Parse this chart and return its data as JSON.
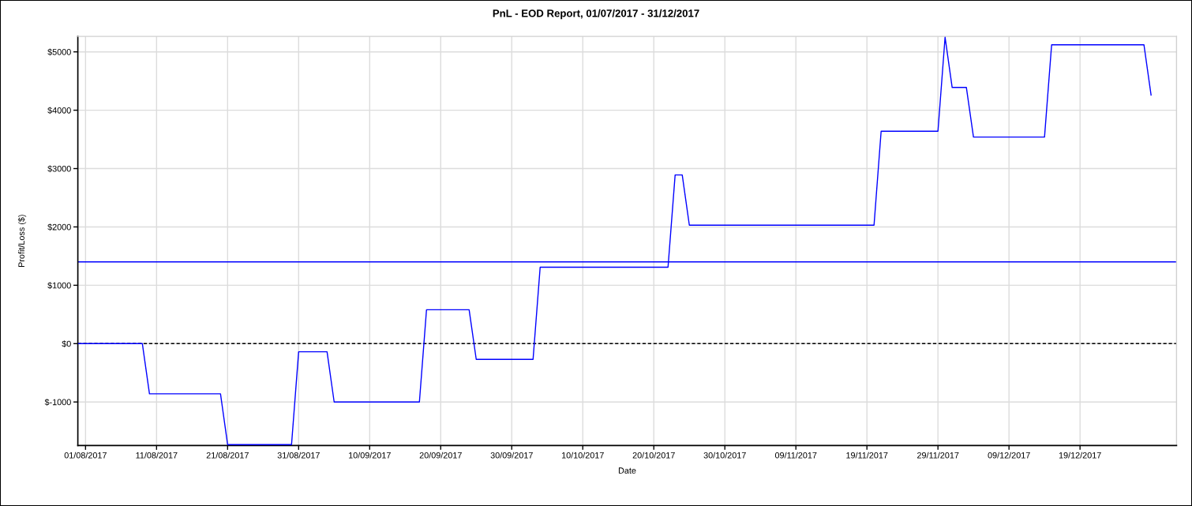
{
  "chart_data": {
    "type": "line",
    "title": "PnL - EOD Report, 01/07/2017 - 31/12/2017",
    "xlabel": "Date",
    "ylabel": "Profit/Loss ($)",
    "x": [
      "2017-07-31",
      "2017-08-09",
      "2017-08-10",
      "2017-08-20",
      "2017-08-21",
      "2017-08-30",
      "2017-08-31",
      "2017-09-04",
      "2017-09-05",
      "2017-09-17",
      "2017-09-18",
      "2017-09-24",
      "2017-09-25",
      "2017-10-03",
      "2017-10-04",
      "2017-10-22",
      "2017-10-23",
      "2017-10-24",
      "2017-10-25",
      "2017-11-20",
      "2017-11-21",
      "2017-11-29",
      "2017-11-30",
      "2017-12-01",
      "2017-12-03",
      "2017-12-04",
      "2017-12-14",
      "2017-12-15",
      "2017-12-28",
      "2017-12-29"
    ],
    "series": [
      {
        "color": "#0000ff",
        "values": [
          0,
          0,
          -860,
          -860,
          -1730,
          -1730,
          -140,
          -140,
          -1000,
          -1000,
          580,
          580,
          -270,
          -270,
          1310,
          1310,
          2890,
          2890,
          2030,
          2030,
          3640,
          3640,
          5250,
          4390,
          4390,
          3540,
          3540,
          5120,
          5120,
          4260
        ]
      }
    ],
    "xlim": [
      "2017-07-30T22:00",
      "2018-01-01T14:00"
    ],
    "ylim": [
      -1745,
      5265
    ],
    "xticks": [
      {
        "value": "2017-08-01",
        "label": "01/08/2017"
      },
      {
        "value": "2017-08-11",
        "label": "11/08/2017"
      },
      {
        "value": "2017-08-21",
        "label": "21/08/2017"
      },
      {
        "value": "2017-08-31",
        "label": "31/08/2017"
      },
      {
        "value": "2017-09-10",
        "label": "10/09/2017"
      },
      {
        "value": "2017-09-20",
        "label": "20/09/2017"
      },
      {
        "value": "2017-09-30",
        "label": "30/09/2017"
      },
      {
        "value": "2017-10-10",
        "label": "10/10/2017"
      },
      {
        "value": "2017-10-20",
        "label": "20/10/2017"
      },
      {
        "value": "2017-10-30",
        "label": "30/10/2017"
      },
      {
        "value": "2017-11-09",
        "label": "09/11/2017"
      },
      {
        "value": "2017-11-19",
        "label": "19/11/2017"
      },
      {
        "value": "2017-11-29",
        "label": "29/11/2017"
      },
      {
        "value": "2017-12-09",
        "label": "09/12/2017"
      },
      {
        "value": "2017-12-19",
        "label": "19/12/2017"
      }
    ],
    "yticks": [
      {
        "value": -1000,
        "label": "$-1000"
      },
      {
        "value": 0,
        "label": "$0"
      },
      {
        "value": 1000,
        "label": "$1000"
      },
      {
        "value": 2000,
        "label": "$2000"
      },
      {
        "value": 3000,
        "label": "$3000"
      },
      {
        "value": 4000,
        "label": "$4000"
      },
      {
        "value": 5000,
        "label": "$5000"
      }
    ],
    "grid": true,
    "line_style": "solid",
    "ref_lines": [
      {
        "axis": "y",
        "value": 0,
        "color": "#000000",
        "line_style": "dashed"
      },
      {
        "axis": "y",
        "value": 1400,
        "color": "#0000ff",
        "line_style": "solid"
      }
    ]
  }
}
